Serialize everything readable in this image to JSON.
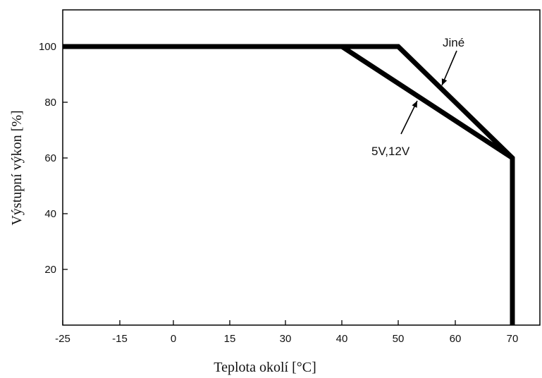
{
  "chart_data": {
    "type": "line",
    "xlabel": "Teplota okolí [°C]",
    "ylabel": "Výstupní výkon [%]",
    "x_ticks": [
      -25,
      -15,
      0,
      15,
      30,
      40,
      50,
      60,
      70
    ],
    "y_ticks": [
      20,
      40,
      60,
      80,
      100
    ],
    "ylim": [
      0,
      112
    ],
    "grid": false,
    "series": [
      {
        "name": "Jiné",
        "x": [
          -25,
          50,
          70,
          70
        ],
        "y": [
          100,
          100,
          60,
          0
        ]
      },
      {
        "name": "5V,12V",
        "x": [
          40,
          70
        ],
        "y": [
          100,
          60
        ]
      }
    ],
    "annotations": [
      {
        "text": "Jiné",
        "target_series": "Jiné"
      },
      {
        "text": "5V,12V",
        "target_series": "5V,12V"
      }
    ]
  },
  "colors": {
    "line": "#000000",
    "axes": "#000000",
    "text": "#111111",
    "background": "#ffffff"
  }
}
